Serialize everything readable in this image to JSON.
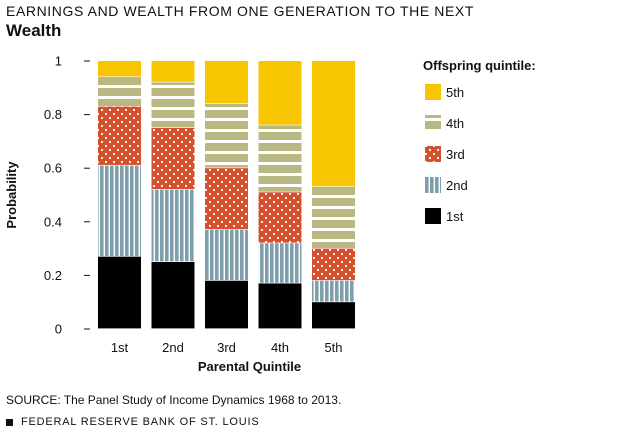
{
  "supertitle": "EARNINGS AND WEALTH FROM ONE GENERATION TO THE NEXT",
  "title": "Wealth",
  "source": "SOURCE: The Panel Study of Income Dynamics 1968 to 2013.",
  "footer": "FEDERAL RESERVE BANK OF ST. LOUIS",
  "footer_icon": "square-bullet-icon",
  "chart_data": {
    "type": "bar",
    "stacked": true,
    "xlabel": "Parental Quintile",
    "ylabel": "Probability",
    "ylim": [
      0,
      1
    ],
    "yticks": [
      "0",
      "0.2",
      "0.4",
      "0.6",
      "0.8",
      "1"
    ],
    "categories": [
      "1st",
      "2nd",
      "3rd",
      "4th",
      "5th"
    ],
    "legend_title": "Offspring quintile:",
    "legend_position": "right",
    "series": [
      {
        "name": "1st",
        "color": "#000000",
        "values": [
          0.27,
          0.25,
          0.18,
          0.17,
          0.1
        ]
      },
      {
        "name": "2nd",
        "color": "#7f9fad",
        "values": [
          0.34,
          0.27,
          0.19,
          0.15,
          0.08
        ]
      },
      {
        "name": "3rd",
        "color": "#d5502c",
        "values": [
          0.22,
          0.23,
          0.23,
          0.19,
          0.12
        ]
      },
      {
        "name": "4th",
        "color": "#b9b882",
        "values": [
          0.11,
          0.17,
          0.24,
          0.25,
          0.23
        ]
      },
      {
        "name": "5th",
        "color": "#f8c600",
        "values": [
          0.06,
          0.08,
          0.16,
          0.24,
          0.47
        ]
      }
    ]
  }
}
